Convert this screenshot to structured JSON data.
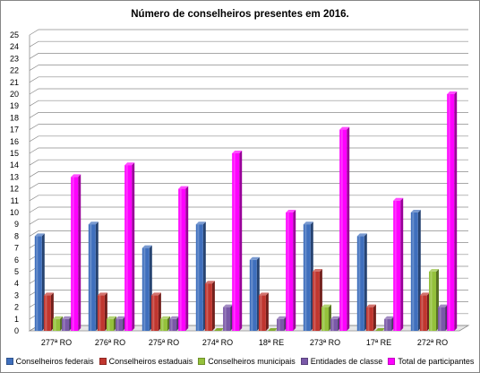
{
  "chart_data": {
    "type": "bar",
    "title": "Número de conselheiros presentes em 2016.",
    "xlabel": "",
    "ylabel": "",
    "categories": [
      "277ª RO",
      "276ª RO",
      "275ª RO",
      "274ª RO",
      "18ª RE",
      "273ª RO",
      "17ª RE",
      "272ª RO"
    ],
    "ylim": [
      0,
      25
    ],
    "yticks": [
      "0",
      "1",
      "2",
      "3",
      "4",
      "5",
      "6",
      "7",
      "8",
      "9",
      "10",
      "11",
      "12",
      "13",
      "14",
      "15",
      "16",
      "17",
      "18",
      "19",
      "20",
      "21",
      "22",
      "23",
      "24",
      "25"
    ],
    "grid": true,
    "legend_position": "bottom",
    "series": [
      {
        "name": "Conselheiros federais",
        "color": "#3f6fbd",
        "values": [
          8,
          9,
          7,
          9,
          6,
          9,
          8,
          10
        ]
      },
      {
        "name": "Conselheiros estaduais",
        "color": "#c0362f",
        "values": [
          3,
          3,
          3,
          4,
          3,
          5,
          2,
          3
        ]
      },
      {
        "name": "Conselheiros municipais",
        "color": "#94c13b",
        "values": [
          1,
          1,
          1,
          0,
          0,
          2,
          0,
          5
        ]
      },
      {
        "name": "Entidades de classe",
        "color": "#7a59a8",
        "values": [
          1,
          1,
          1,
          2,
          1,
          1,
          1,
          2
        ]
      },
      {
        "name": "Total de participantes",
        "color": "#ff00ff",
        "values": [
          13,
          14,
          12,
          15,
          10,
          17,
          11,
          20
        ]
      }
    ]
  }
}
